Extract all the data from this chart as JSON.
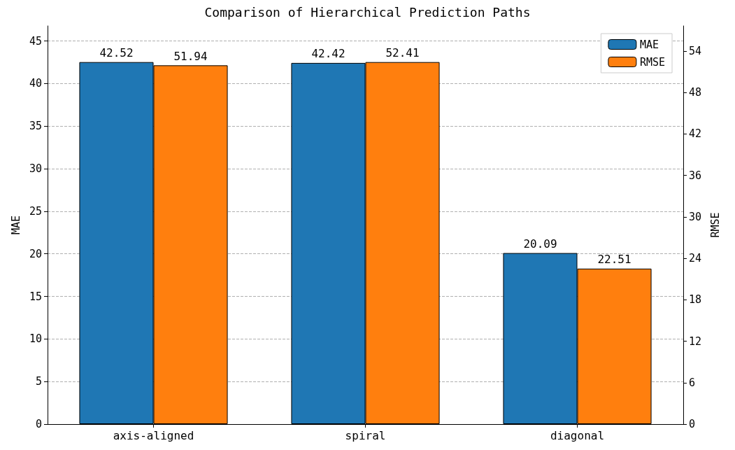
{
  "chart_data": {
    "type": "bar",
    "title": "Comparison of Hierarchical Prediction Paths",
    "ylabel": "MAE",
    "y2label": "RMSE",
    "categories": [
      "axis-aligned",
      "spiral",
      "diagonal"
    ],
    "series": [
      {
        "name": "MAE",
        "color": "#1f77b4",
        "values": [
          42.52,
          42.42,
          20.09
        ]
      },
      {
        "name": "RMSE",
        "color": "#ff7f0e",
        "values": [
          51.94,
          52.41,
          22.51
        ],
        "axis": "y2"
      }
    ],
    "ylim": [
      0,
      46.77
    ],
    "yticks": [
      0,
      5,
      10,
      15,
      20,
      25,
      30,
      35,
      40,
      45
    ],
    "y2lim": [
      0,
      57.65
    ],
    "y2ticks": [
      0,
      6,
      12,
      18,
      24,
      30,
      36,
      42,
      48,
      54
    ],
    "grid": "y",
    "legend": "top right",
    "data_labels": true
  }
}
